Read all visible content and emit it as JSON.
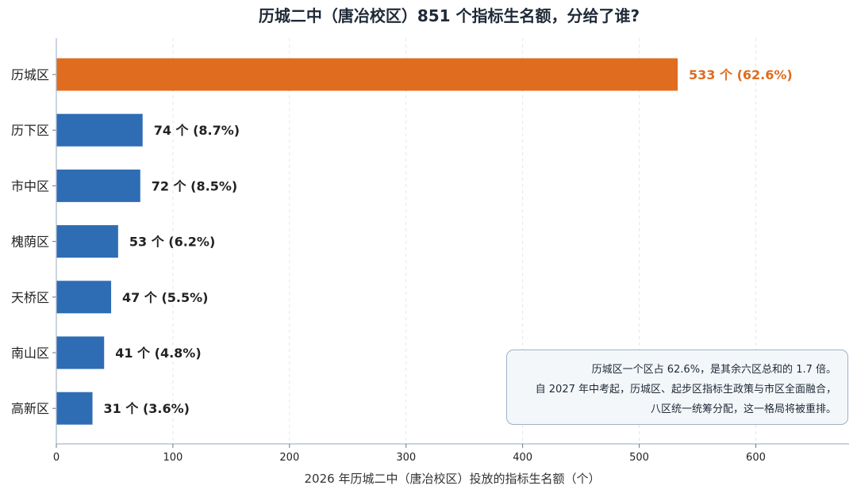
{
  "chart_data": {
    "type": "bar",
    "orientation": "horizontal",
    "title": "历城二中（唐冶校区）851 个指标生名额，分给了谁?",
    "xlabel": "2026 年历城二中（唐冶校区）投放的指标生名额（个）",
    "ylabel": "",
    "xlim": [
      0,
      680
    ],
    "x_ticks": [
      0,
      100,
      200,
      300,
      400,
      500,
      600
    ],
    "grid": "vertical-dashed",
    "categories": [
      "历城区",
      "历下区",
      "市中区",
      "槐荫区",
      "天桥区",
      "南山区",
      "高新区"
    ],
    "values": [
      533,
      74,
      72,
      53,
      47,
      41,
      31
    ],
    "data_labels": [
      "533 个 (62.6%)",
      "74 个 (8.7%)",
      "72 个 (8.5%)",
      "53 个 (6.2%)",
      "47 个 (5.5%)",
      "41 个 (4.8%)",
      "31 个 (3.6%)"
    ],
    "colors": {
      "highlight": "#e06c1f",
      "default": "#2e6db4",
      "highlight_label": "#e06c1f",
      "default_label": "#222222"
    },
    "highlight_index": 0
  },
  "annotation": {
    "lines": [
      "历城区一个区占 62.6%，是其余六区总和的 1.7 倍。",
      "自 2027 年中考起，历城区、起步区指标生政策与市区全面融合，",
      "八区统一统筹分配，这一格局将被重排。"
    ]
  }
}
